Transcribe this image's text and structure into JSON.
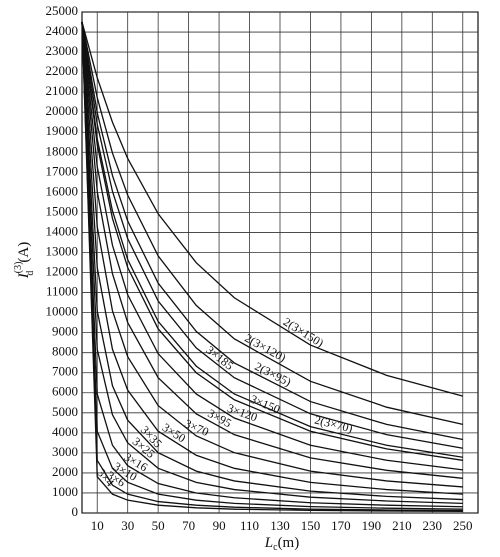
{
  "chart_data": {
    "type": "line",
    "ylabel": {
      "main": "I",
      "sup": "(3)",
      "sub": "d",
      "unit": "(A)"
    },
    "xlabel": {
      "main": "L",
      "sub": "c",
      "unit": "(m)"
    },
    "x": [
      0,
      10,
      20,
      30,
      50,
      75,
      100,
      150,
      200,
      250
    ],
    "xlim": [
      0,
      260
    ],
    "xticks": [
      10,
      30,
      50,
      70,
      90,
      110,
      130,
      150,
      170,
      190,
      210,
      230,
      250
    ],
    "ylim": [
      0,
      25000
    ],
    "yticks": [
      0,
      1000,
      2000,
      3000,
      4000,
      5000,
      6000,
      7000,
      8000,
      9000,
      10000,
      11000,
      12000,
      13000,
      14000,
      15000,
      16000,
      17000,
      18000,
      19000,
      20000,
      21000,
      22000,
      23000,
      24000,
      25000
    ],
    "grid": true,
    "color": "#111111",
    "series": [
      {
        "name": "2(3×150)",
        "values": [
          24500,
          21720,
          19500,
          17690,
          14930,
          12490,
          10740,
          8380,
          6870,
          5830
        ]
      },
      {
        "name": "2(3×120)",
        "values": [
          24500,
          20730,
          17960,
          15860,
          12830,
          10360,
          8690,
          6570,
          5280,
          4420
        ]
      },
      {
        "name": "2(3×95)",
        "values": [
          24500,
          19970,
          16840,
          14570,
          11470,
          9060,
          7490,
          5560,
          4420,
          3670
        ]
      },
      {
        "name": "3×185",
        "values": [
          24500,
          19400,
          16050,
          13690,
          10580,
          8240,
          6750,
          4950,
          3910,
          3230
        ]
      },
      {
        "name": "2(3×70)",
        "values": [
          24500,
          18670,
          15080,
          12650,
          9560,
          7330,
          5940,
          4310,
          3380,
          2780
        ]
      },
      {
        "name": "3×150",
        "values": [
          24500,
          18380,
          14700,
          12250,
          9190,
          7000,
          5650,
          4080,
          3200,
          2630
        ]
      },
      {
        "name": "3×120",
        "values": [
          24500,
          17290,
          13360,
          10890,
          7950,
          5940,
          4740,
          3380,
          2630,
          2150
        ]
      },
      {
        "name": "3×95",
        "values": [
          24500,
          16050,
          11940,
          9500,
          6750,
          4950,
          3910,
          2750,
          2130,
          1730
        ]
      },
      {
        "name": "3×70",
        "values": [
          24500,
          14290,
          10090,
          7800,
          5360,
          3850,
          3010,
          2090,
          1600,
          1300
        ]
      },
      {
        "name": "3×50",
        "values": [
          24500,
          12250,
          8170,
          6130,
          4080,
          2880,
          2230,
          1530,
          1170,
          940
        ]
      },
      {
        "name": "3×35",
        "values": [
          24500,
          10090,
          6350,
          4630,
          3010,
          2090,
          1600,
          1090,
          830,
          670
        ]
      },
      {
        "name": "3×25",
        "values": [
          24500,
          8170,
          4900,
          3500,
          2230,
          1530,
          1170,
          790,
          600,
          480
        ]
      },
      {
        "name": "3×16",
        "values": [
          24500,
          5940,
          3380,
          2360,
          1470,
          1000,
          760,
          510,
          390,
          310
        ]
      },
      {
        "name": "3×10",
        "values": [
          24500,
          4080,
          2230,
          1530,
          940,
          640,
          480,
          320,
          240,
          190
        ]
      },
      {
        "name": "3×6",
        "values": [
          24500,
          2630,
          1390,
          940,
          570,
          390,
          290,
          190,
          150,
          120
        ]
      },
      {
        "name": "3×4",
        "values": [
          24500,
          1810,
          940,
          640,
          390,
          260,
          190,
          130,
          100,
          80
        ]
      }
    ]
  }
}
